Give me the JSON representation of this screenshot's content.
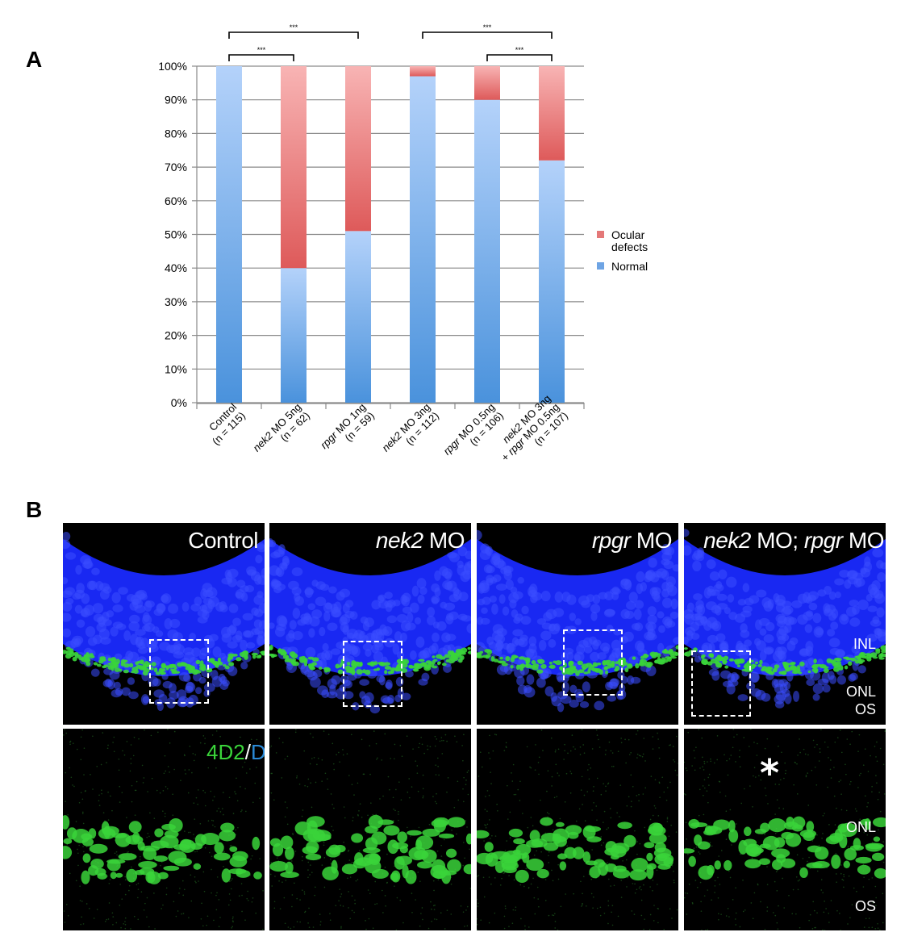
{
  "panel_a_label": "A",
  "panel_b_label": "B",
  "chart_data": {
    "type": "bar",
    "stacked": true,
    "categories": [
      {
        "lines": [
          {
            "t": "Control",
            "i": false
          }
        ],
        "n": "(n = 115)"
      },
      {
        "lines": [
          {
            "t": "nek2",
            "i": true
          },
          {
            "t": " MO 5ng",
            "i": false
          }
        ],
        "n": "(n = 62)"
      },
      {
        "lines": [
          {
            "t": "rpgr",
            "i": true
          },
          {
            "t": " MO 1ng",
            "i": false
          }
        ],
        "n": "(n = 59)"
      },
      {
        "lines": [
          {
            "t": "nek2",
            "i": true
          },
          {
            "t": " MO 3ng",
            "i": false
          }
        ],
        "n": "(n = 112)"
      },
      {
        "lines": [
          {
            "t": "rpgr",
            "i": true
          },
          {
            "t": " MO 0.5ng",
            "i": false
          }
        ],
        "n": "(n = 106)"
      },
      {
        "lines": [
          {
            "t": "nek2",
            "i": true
          },
          {
            "t": " MO 3ng",
            "i": false
          }
        ],
        "line2": [
          {
            "t": "+ ",
            "i": false
          },
          {
            "t": "rpgr",
            "i": true
          },
          {
            "t": " MO 0.5ng",
            "i": false
          }
        ],
        "n": "(n = 107)"
      }
    ],
    "series": [
      {
        "name": "Normal",
        "color": "#6ea4e4",
        "values": [
          100,
          40,
          51,
          97,
          90,
          72
        ]
      },
      {
        "name": "Ocular defects",
        "color": "#e47878",
        "values": [
          0,
          60,
          49,
          3,
          10,
          28
        ]
      }
    ],
    "legend_labels": {
      "ocular_line1": "Ocular",
      "ocular_line2": "defects",
      "normal": "Normal"
    },
    "y_ticks": [
      "0%",
      "10%",
      "20%",
      "30%",
      "40%",
      "50%",
      "60%",
      "70%",
      "80%",
      "90%",
      "100%"
    ],
    "ylim": [
      0,
      100
    ],
    "grid": true,
    "legend_position": "right",
    "significance": [
      {
        "from": 0,
        "to": 1,
        "label": "***"
      },
      {
        "from": 0,
        "to": 2,
        "label": "***"
      },
      {
        "from": 3,
        "to": 5,
        "label": "***"
      },
      {
        "from": 4,
        "to": 5,
        "label": "***"
      }
    ]
  },
  "micrographs": {
    "panels": [
      {
        "title_italic": "",
        "title_plain": "Control"
      },
      {
        "title_italic": "nek2",
        "title_plain": " MO"
      },
      {
        "title_italic": "rpgr",
        "title_plain": " MO"
      },
      {
        "title_italic": "nek2",
        "title_plain": " MO; ",
        "title_italic2": "rpgr",
        "title_plain2": " MO"
      }
    ],
    "layer_labels_top": [
      "INL",
      "ONL",
      "OS"
    ],
    "layer_labels_bottom": [
      "ONL",
      "OS"
    ],
    "stain_green": "4D2",
    "stain_sep": "/",
    "stain_blue": "DAPI",
    "asterisk": "*",
    "colors": {
      "dapi": "#1a2aff",
      "marker": "#3ad43a",
      "stain_blue_text": "#2a8ad8"
    }
  }
}
